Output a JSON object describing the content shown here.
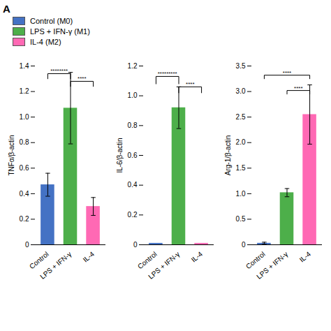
{
  "title": "A",
  "chart_data": [
    {
      "type": "bar",
      "ylabel": "TNFα/β-actin",
      "categories": [
        "Control",
        "LPS + IFN-γ",
        "IL-4"
      ],
      "series": [
        {
          "name": "Control (M0)",
          "color": "#4472c4",
          "values": [
            0.47,
            null,
            null
          ],
          "errors": [
            0.09,
            null,
            null
          ]
        },
        {
          "name": "LPS + IFN-γ (M1)",
          "color": "#4daf4a",
          "values": [
            null,
            1.07,
            null
          ],
          "errors": [
            null,
            0.28,
            null
          ]
        },
        {
          "name": "IL-4 (M2)",
          "color": "#ff69b4",
          "values": [
            null,
            null,
            0.3
          ],
          "errors": [
            null,
            null,
            0.07
          ]
        }
      ],
      "ylim": [
        0,
        1.4
      ],
      "yticks": [
        0,
        0.2,
        0.4,
        0.6,
        0.8,
        {
          "value": 1.0,
          "label": "1.0"
        },
        1.2,
        1.4
      ],
      "annotations": [
        {
          "x1": "Control",
          "x2": "LPS + IFN-γ",
          "y": 1.3,
          "y2": 1.34,
          "text": "********"
        },
        {
          "x1": "LPS + IFN-γ",
          "x2": "IL-4",
          "y": 1.24,
          "y2": 1.28,
          "text": "****"
        }
      ]
    },
    {
      "type": "bar",
      "ylabel": "IL-6/β-actin",
      "categories": [
        "Control",
        "LPS + IFN-γ",
        "IL-4"
      ],
      "series": [
        {
          "name": "Control (M0)",
          "color": "#4472c4",
          "values": [
            0.01,
            null,
            null
          ],
          "errors": [
            0.0,
            null,
            null
          ]
        },
        {
          "name": "LPS + IFN-γ (M1)",
          "color": "#4daf4a",
          "values": [
            null,
            0.92,
            null
          ],
          "errors": [
            null,
            0.14,
            null
          ]
        },
        {
          "name": "IL-4 (M2)",
          "color": "#ff69b4",
          "values": [
            null,
            null,
            0.01
          ],
          "errors": [
            null,
            null,
            0.0
          ]
        }
      ],
      "ylim": [
        0,
        1.2
      ],
      "yticks": [
        0,
        0.2,
        0.4,
        0.6,
        0.8,
        {
          "value": 1.0,
          "label": "1.0"
        },
        1.2
      ],
      "annotations": [
        {
          "x1": "Control",
          "x2": "LPS + IFN-γ",
          "y": 1.08,
          "y2": 1.13,
          "text": "*********"
        },
        {
          "x1": "LPS + IFN-γ",
          "x2": "IL-4",
          "y": 1.02,
          "y2": 1.06,
          "text": "****"
        }
      ]
    },
    {
      "type": "bar",
      "ylabel": "Arg-1/β-actin",
      "categories": [
        "Control",
        "LPS + IFN-γ",
        "IL-4"
      ],
      "series": [
        {
          "name": "Control (M0)",
          "color": "#4472c4",
          "values": [
            0.03,
            null,
            null
          ],
          "errors": [
            0.02,
            null,
            null
          ]
        },
        {
          "name": "LPS + IFN-γ (M1)",
          "color": "#4daf4a",
          "values": [
            null,
            1.02,
            null
          ],
          "errors": [
            null,
            0.08,
            null
          ]
        },
        {
          "name": "IL-4 (M2)",
          "color": "#ff69b4",
          "values": [
            null,
            null,
            2.55
          ],
          "errors": [
            null,
            null,
            0.58
          ]
        }
      ],
      "ylim": [
        0,
        3.5
      ],
      "yticks": [
        0,
        0.5,
        {
          "value": 1.0,
          "label": "1.0"
        },
        1.5,
        {
          "value": 2.0,
          "label": "2.0"
        },
        2.5,
        {
          "value": 3.0,
          "label": "3.0"
        },
        3.5
      ],
      "annotations": [
        {
          "x1": "Control",
          "x2": "IL-4",
          "y": 3.25,
          "y2": 3.32,
          "text": "****"
        },
        {
          "x1": "LPS + IFN-γ",
          "x2": "IL-4",
          "y": 2.95,
          "y2": 3.02,
          "text": "****"
        }
      ]
    }
  ]
}
